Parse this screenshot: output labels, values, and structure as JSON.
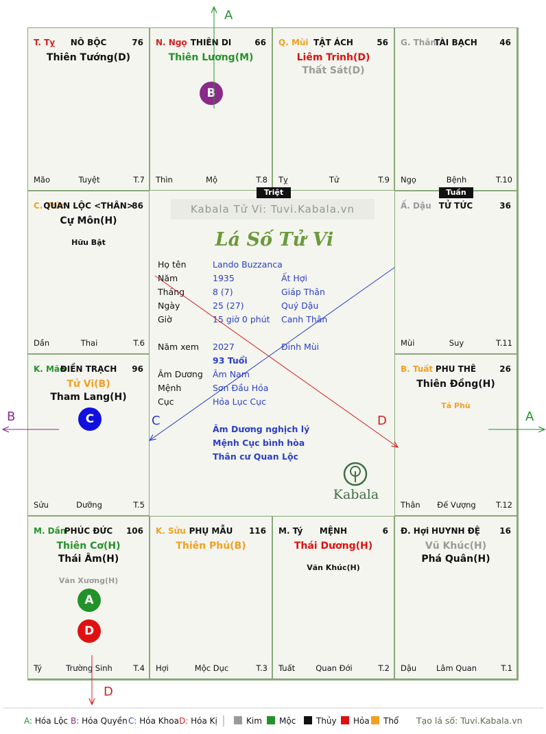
{
  "palaces": [
    {
      "id": "ty",
      "can": "T. Tỵ",
      "can_color": "#d42020",
      "name": "NÔ BỘC",
      "num": "76",
      "stars": [
        {
          "text": "Thiên Tướng(D)",
          "color": "#111111",
          "cls": "major"
        }
      ],
      "chi": "Mão",
      "stage": "Tuyệt",
      "t": "T.7"
    },
    {
      "id": "ngo",
      "can": "N. Ngọ",
      "can_color": "#d42020",
      "name": "THIÊN DI",
      "num": "66",
      "stars": [
        {
          "text": "Thiên Lương(M)",
          "color": "#23922b",
          "cls": "major"
        }
      ],
      "chi": "Thìn",
      "stage": "Mộ",
      "t": "T.8"
    },
    {
      "id": "mui",
      "can": "Q. Mùi",
      "can_color": "#f0a020",
      "name": "TẬT ÁCH",
      "num": "56",
      "stars": [
        {
          "text": "Liêm Trinh(D)",
          "color": "#e01010",
          "cls": "major"
        },
        {
          "text": "Thất Sát(D)",
          "color": "#9a9a9a",
          "cls": "major"
        }
      ],
      "chi": "Tỵ",
      "stage": "Tử",
      "t": "T.9"
    },
    {
      "id": "than",
      "can": "G. Thân",
      "can_color": "#9a9a9a",
      "name": "TÀI BẠCH",
      "num": "46",
      "stars": [],
      "chi": "Ngọ",
      "stage": "Bệnh",
      "t": "T.10"
    },
    {
      "id": "thin",
      "can": "C. Thìn",
      "can_color": "#f0a020",
      "name": "QUAN LỘC <THÂN>",
      "num": "86",
      "stars": [
        {
          "text": "Cự Môn(H)",
          "color": "#111111",
          "cls": "major"
        },
        {
          "text": "Hữu Bật",
          "color": "#111111",
          "cls": "minor"
        }
      ],
      "chi": "Dần",
      "stage": "Thai",
      "t": "T.6"
    },
    {
      "id": "dau",
      "can": "Ấ. Dậu",
      "can_color": "#9a9a9a",
      "name": "TỬ TỨC",
      "num": "36",
      "stars": [],
      "chi": "Mùi",
      "stage": "Suy",
      "t": "T.11"
    },
    {
      "id": "mao",
      "can": "K. Mão",
      "can_color": "#23922b",
      "name": "ĐIỀN TRẠCH",
      "num": "96",
      "stars": [
        {
          "text": "Tử Vi(B)",
          "color": "#f0a020",
          "cls": "major"
        },
        {
          "text": "Tham Lang(H)",
          "color": "#111111",
          "cls": "major"
        }
      ],
      "chi": "Sửu",
      "stage": "Dưỡng",
      "t": "T.5"
    },
    {
      "id": "tuat",
      "can": "B. Tuất",
      "can_color": "#f0a020",
      "name": "PHU THÊ",
      "num": "26",
      "stars": [
        {
          "text": "Thiên Đồng(H)",
          "color": "#111111",
          "cls": "major"
        },
        {
          "text": "Tả Phù",
          "color": "#f0a020",
          "cls": "minor"
        }
      ],
      "chi": "Thân",
      "stage": "Đế Vượng",
      "t": "T.12"
    },
    {
      "id": "dan",
      "can": "M. Dần",
      "can_color": "#23922b",
      "name": "PHÚC ĐỨC",
      "num": "106",
      "stars": [
        {
          "text": "Thiên Cơ(H)",
          "color": "#23922b",
          "cls": "major"
        },
        {
          "text": "Thái Âm(H)",
          "color": "#111111",
          "cls": "major"
        },
        {
          "text": "Văn Xương(H)",
          "color": "#9a9a9a",
          "cls": "minor"
        }
      ],
      "chi": "Tý",
      "stage": "Trường Sinh",
      "t": "T.4"
    },
    {
      "id": "suu",
      "can": "K. Sửu",
      "can_color": "#f0a020",
      "name": "PHỤ MẪU",
      "num": "116",
      "stars": [
        {
          "text": "Thiên Phủ(B)",
          "color": "#f0a020",
          "cls": "major"
        }
      ],
      "chi": "Hợi",
      "stage": "Mộc Dục",
      "t": "T.3"
    },
    {
      "id": "tyy",
      "can": "M. Tý",
      "can_color": "#111111",
      "name": "MỆNH",
      "num": "6",
      "stars": [
        {
          "text": "Thái Dương(H)",
          "color": "#e01010",
          "cls": "major"
        },
        {
          "text": "Văn Khúc(H)",
          "color": "#111111",
          "cls": "minor"
        }
      ],
      "chi": "Tuất",
      "stage": "Quan Đới",
      "t": "T.2"
    },
    {
      "id": "hoi",
      "can": "Đ. Hợi",
      "can_color": "#111111",
      "name": "HUYNH ĐỆ",
      "num": "16",
      "stars": [
        {
          "text": "Vũ Khúc(H)",
          "color": "#9a9a9a",
          "cls": "major"
        },
        {
          "text": "Phá Quân(H)",
          "color": "#111111",
          "cls": "major"
        }
      ],
      "chi": "Dậu",
      "stage": "Lâm Quan",
      "t": "T.1"
    }
  ],
  "tags": {
    "triet": "Triệt",
    "tuan": "Tuần"
  },
  "center": {
    "watermark": "Kabala Tử Vi: Tuvi.Kabala.vn",
    "title": "Lá Số Tử Vi",
    "rows": [
      {
        "label": "Họ tên",
        "value": "Lando Buzzanca",
        "extra": ""
      },
      {
        "label": "Năm",
        "value": "1935",
        "extra": "Ất Hợi"
      },
      {
        "label": "Tháng",
        "value": "8  (7)",
        "extra": "Giáp Thân"
      },
      {
        "label": "Ngày",
        "value": "25  (27)",
        "extra": "Quý Dậu"
      },
      {
        "label": "Giờ",
        "value": "15 giờ 0 phút",
        "extra": "Canh Thân"
      }
    ],
    "year_label": "Năm xem",
    "year_value": "2027",
    "year_extra": "Đinh Mùi",
    "age": "93 Tuổi",
    "rows2": [
      {
        "label": "Âm Dương",
        "value": "Âm Nam"
      },
      {
        "label": "Mệnh",
        "value": "Sơn Đầu Hỏa"
      },
      {
        "label": "Cục",
        "value": "Hỏa Lục Cục"
      }
    ],
    "notes": [
      "Âm Dương nghịch lý",
      "Mệnh Cục bình hòa",
      "Thân cư Quan Lộc"
    ],
    "logo": "Kabala"
  },
  "markers": {
    "A": "A",
    "B": "B",
    "C": "C",
    "D": "D"
  },
  "legend": {
    "items": [
      {
        "text": "A: Hóa Lộc",
        "color": "#23922b"
      },
      {
        "text": "B: Hóa Quyền",
        "color": "#8a2a8a"
      },
      {
        "text": "C: Hóa Khoa",
        "color": "#2b3fc4"
      },
      {
        "text": "D: Hóa Kị",
        "color": "#d42020"
      }
    ],
    "elements": [
      {
        "text": "Kim",
        "color": "#9a9a9a"
      },
      {
        "text": "Mộc",
        "color": "#23922b"
      },
      {
        "text": "Thủy",
        "color": "#111111"
      },
      {
        "text": "Hỏa",
        "color": "#e01010"
      },
      {
        "text": "Thổ",
        "color": "#f0a020"
      }
    ],
    "site": "Tạo lá số: Tuvi.Kabala.vn"
  }
}
